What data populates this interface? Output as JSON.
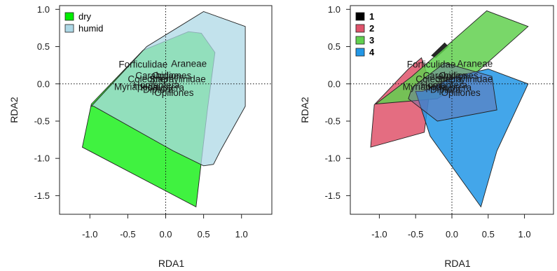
{
  "chart_data": [
    {
      "type": "scatter",
      "title": "",
      "xlabel": "RDA1",
      "ylabel": "RDA2",
      "xlim": [
        -1.4,
        1.4
      ],
      "ylim": [
        -1.75,
        1.05
      ],
      "x_ticks": [
        -1.0,
        -0.5,
        0.0,
        0.5,
        1.0
      ],
      "x_tick_labels": [
        "-1.0",
        "-0.5",
        "0.0",
        "0.5",
        "1.0"
      ],
      "y_ticks": [
        1.0,
        0.5,
        0.0,
        -0.5,
        -1.0,
        -1.5
      ],
      "y_tick_labels": [
        "1.0",
        "0.5",
        "0.0",
        "-0.5",
        "-1.0",
        "-1.5"
      ],
      "reference_lines": {
        "x": 0,
        "y": 0,
        "style": "dotted"
      },
      "legend": {
        "position": "top-left",
        "bold": false
      },
      "series": [
        {
          "name": "dry",
          "fill": "#00ee00",
          "opacity": 0.75,
          "hull": [
            [
              -0.98,
              -0.27
            ],
            [
              -0.3,
              0.45
            ],
            [
              0.3,
              0.7
            ],
            [
              0.47,
              0.68
            ],
            [
              0.65,
              0.42
            ],
            [
              0.55,
              -0.35
            ],
            [
              0.4,
              -1.65
            ],
            [
              -1.1,
              -0.85
            ]
          ]
        },
        {
          "name": "humid",
          "fill": "#add8e6",
          "opacity": 0.75,
          "hull": [
            [
              -0.98,
              -0.3
            ],
            [
              -0.25,
              0.5
            ],
            [
              0.5,
              0.97
            ],
            [
              1.05,
              0.77
            ],
            [
              1.05,
              -0.3
            ],
            [
              0.72,
              -0.9
            ],
            [
              0.63,
              -1.08
            ],
            [
              0.5,
              -1.1
            ],
            [
              0.1,
              -0.9
            ],
            [
              -0.95,
              -0.3
            ]
          ]
        }
      ],
      "species_labels": [
        {
          "text": "Forficulidae",
          "x": -0.62,
          "y": 0.22
        },
        {
          "text": "Araneae",
          "x": 0.07,
          "y": 0.23
        },
        {
          "text": "Carabidae",
          "x": -0.4,
          "y": 0.07
        },
        {
          "text": "Coleoptera",
          "x": -0.5,
          "y": 0.02
        },
        {
          "text": "Opiliones",
          "x": -0.18,
          "y": 0.07
        },
        {
          "text": "Staphylinidae",
          "x": -0.22,
          "y": 0.02
        },
        {
          "text": "Myriapoda",
          "x": -0.68,
          "y": -0.08
        },
        {
          "text": "Homoptera",
          "x": -0.43,
          "y": -0.06
        },
        {
          "text": "Hemiptera",
          "x": -0.33,
          "y": -0.09
        },
        {
          "text": "Diptera",
          "x": -0.3,
          "y": -0.12
        },
        {
          "text": "Opiliones",
          "x": -0.15,
          "y": -0.16
        }
      ]
    },
    {
      "type": "scatter",
      "title": "",
      "xlabel": "RDA1",
      "ylabel": "RDA2",
      "xlim": [
        -1.4,
        1.4
      ],
      "ylim": [
        -1.75,
        1.05
      ],
      "x_ticks": [
        -1.0,
        -0.5,
        0.0,
        0.5,
        1.0
      ],
      "x_tick_labels": [
        "-1.0",
        "-0.5",
        "0.0",
        "0.5",
        "1.0"
      ],
      "y_ticks": [
        1.0,
        0.5,
        0.0,
        -0.5,
        -1.0,
        -1.5
      ],
      "y_tick_labels": [
        "1.0",
        "0.5",
        "0.0",
        "-0.5",
        "-1.0",
        "-1.5"
      ],
      "reference_lines": {
        "x": 0,
        "y": 0,
        "style": "dotted"
      },
      "legend": {
        "position": "top-left",
        "bold": true
      },
      "series": [
        {
          "name": "1",
          "fill": "#000000",
          "opacity": 0.85,
          "hull": [
            [
              -0.28,
              0.38
            ],
            [
              -0.1,
              0.55
            ],
            [
              -0.05,
              0.5
            ],
            [
              -0.22,
              0.35
            ]
          ]
        },
        {
          "name": "2",
          "fill": "#df536b",
          "opacity": 0.85,
          "hull": [
            [
              -1.07,
              -0.28
            ],
            [
              -0.6,
              0.2
            ],
            [
              -0.42,
              0.35
            ],
            [
              -0.35,
              0.15
            ],
            [
              -0.3,
              -0.05
            ],
            [
              -0.38,
              -0.65
            ],
            [
              -1.12,
              -0.85
            ]
          ]
        },
        {
          "name": "3",
          "fill": "#61d04f",
          "opacity": 0.85,
          "hull": [
            [
              -1.05,
              -0.27
            ],
            [
              -0.55,
              0.1
            ],
            [
              0.48,
              0.98
            ],
            [
              1.05,
              0.77
            ],
            [
              0.3,
              0.12
            ],
            [
              -0.2,
              -0.2
            ]
          ]
        },
        {
          "name": "4",
          "fill": "#2297e6",
          "opacity": 0.85,
          "hull": [
            [
              -0.4,
              -0.1
            ],
            [
              0.05,
              0.1
            ],
            [
              0.5,
              0.2
            ],
            [
              1.05,
              0.0
            ],
            [
              0.62,
              -0.9
            ],
            [
              0.4,
              -1.65
            ],
            [
              -0.3,
              -0.7
            ],
            [
              -0.5,
              -0.1
            ]
          ]
        }
      ],
      "overlay_hull": {
        "fill": "#6b6bab",
        "opacity": 0.45,
        "hull": [
          [
            -0.55,
            -0.05
          ],
          [
            -0.1,
            0.28
          ],
          [
            0.55,
            0.1
          ],
          [
            0.62,
            -0.35
          ],
          [
            -0.2,
            -0.5
          ],
          [
            -0.6,
            -0.2
          ]
        ]
      },
      "species_labels": [
        {
          "text": "Forficulidae",
          "x": -0.62,
          "y": 0.22
        },
        {
          "text": "Araneae",
          "x": 0.07,
          "y": 0.23
        },
        {
          "text": "Carabidae",
          "x": -0.4,
          "y": 0.07
        },
        {
          "text": "Coleoptera",
          "x": -0.5,
          "y": 0.02
        },
        {
          "text": "Opiliones",
          "x": -0.18,
          "y": 0.07
        },
        {
          "text": "Staphylinidae",
          "x": -0.22,
          "y": 0.02
        },
        {
          "text": "Myriapoda",
          "x": -0.68,
          "y": -0.08
        },
        {
          "text": "Homoptera",
          "x": -0.43,
          "y": -0.06
        },
        {
          "text": "Hemiptera",
          "x": -0.33,
          "y": -0.09
        },
        {
          "text": "Diptera",
          "x": -0.3,
          "y": -0.12
        },
        {
          "text": "Opiliones",
          "x": -0.15,
          "y": -0.16
        }
      ]
    }
  ]
}
